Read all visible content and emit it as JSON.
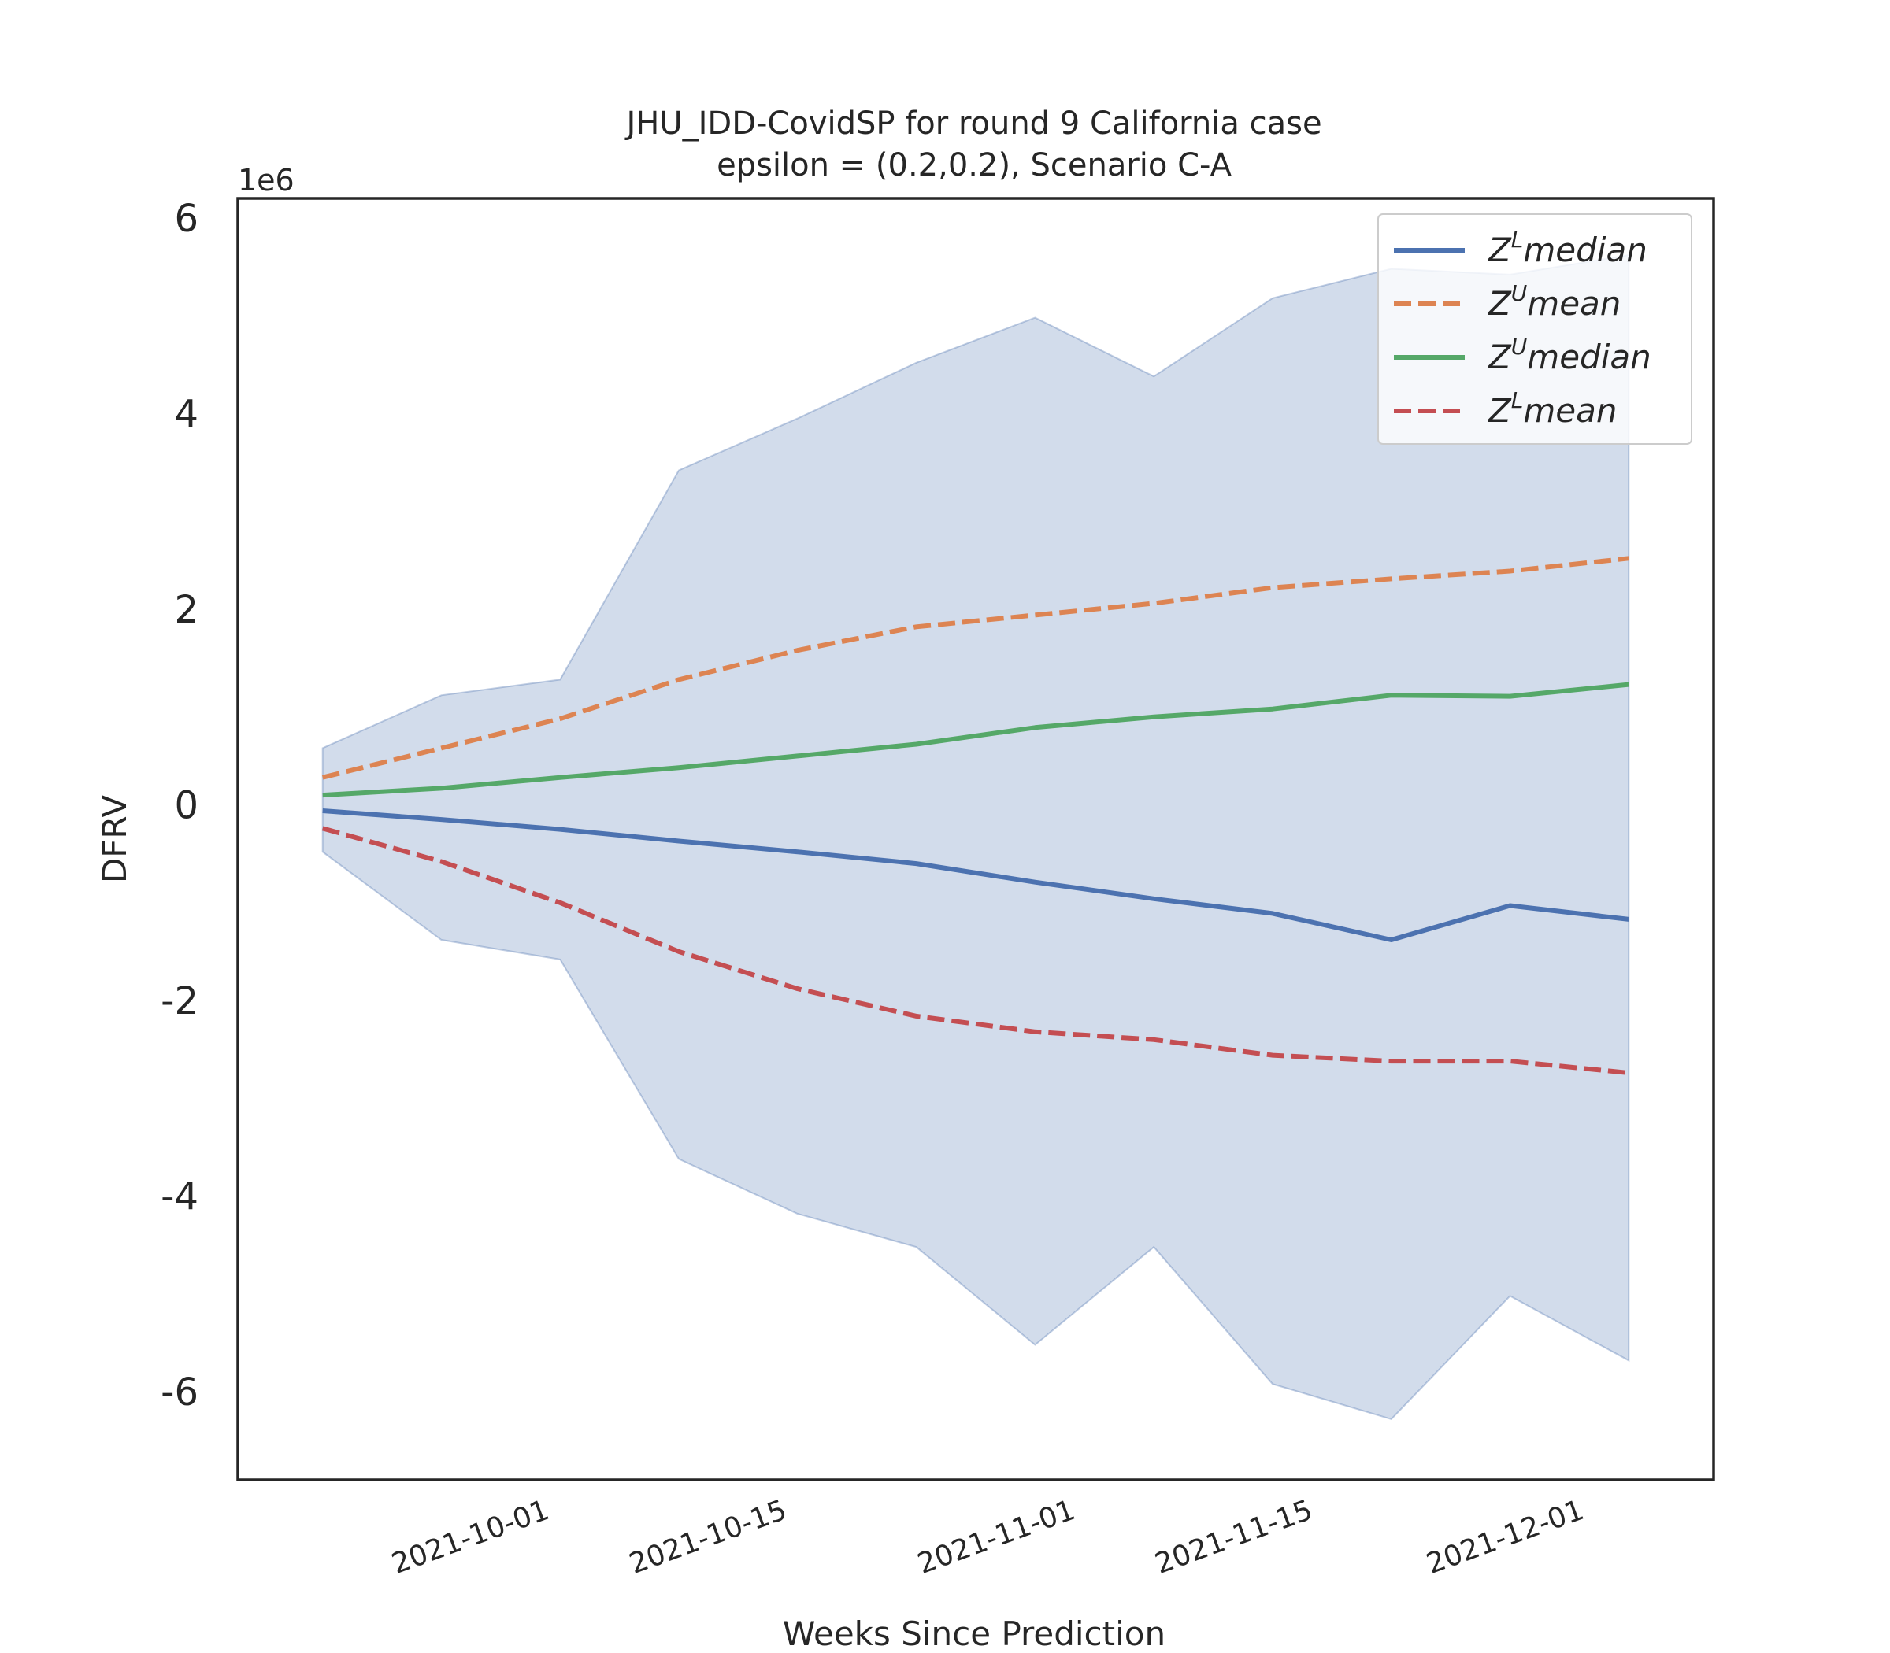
{
  "chart_data": {
    "type": "line",
    "title": "JHU_IDD-CovidSP for round 9 California  case",
    "subtitle": "epsilon = (0.2,0.2), Scenario C-A",
    "xlabel": "Weeks Since Prediction",
    "ylabel": "DFRV",
    "y_offset_label": "1e6",
    "y_scale": 1000000,
    "ylim": [
      -6.9,
      6.2
    ],
    "yticks": [
      -6,
      -4,
      -2,
      0,
      2,
      4,
      6
    ],
    "ytick_labels": [
      "-6",
      "-4",
      "-2",
      "0",
      "2",
      "4",
      "6"
    ],
    "xlim": [
      "2021-09-13",
      "2021-12-09"
    ],
    "xtick_dates": [
      "2021-10-01",
      "2021-10-15",
      "2021-11-01",
      "2021-11-15",
      "2021-12-01"
    ],
    "x": [
      "2021-09-18",
      "2021-09-25",
      "2021-10-02",
      "2021-10-09",
      "2021-10-16",
      "2021-10-23",
      "2021-10-30",
      "2021-11-06",
      "2021-11-13",
      "2021-11-20",
      "2021-11-27",
      "2021-12-04"
    ],
    "band": {
      "upper": [
        0.58,
        1.12,
        1.28,
        3.42,
        3.95,
        4.52,
        4.98,
        4.38,
        5.18,
        5.48,
        5.42,
        5.62
      ],
      "lower": [
        -0.48,
        -1.38,
        -1.58,
        -3.62,
        -4.18,
        -4.52,
        -5.52,
        -4.52,
        -5.92,
        -6.28,
        -5.02,
        -5.68
      ],
      "color": "#4c72b0",
      "opacity": 0.25
    },
    "series": [
      {
        "name": "Z^L median",
        "name_base": "Z",
        "name_sup": "L",
        "name_rest": "median",
        "color": "#4c72b0",
        "dashed": false,
        "values": [
          -0.06,
          -0.15,
          -0.25,
          -0.37,
          -0.48,
          -0.6,
          -0.79,
          -0.96,
          -1.11,
          -1.38,
          -1.03,
          -1.17
        ]
      },
      {
        "name": "Z^U mean",
        "name_base": "Z",
        "name_sup": "U",
        "name_rest": "mean",
        "color": "#dd8452",
        "dashed": true,
        "values": [
          0.28,
          0.58,
          0.88,
          1.28,
          1.58,
          1.82,
          1.94,
          2.06,
          2.22,
          2.31,
          2.39,
          2.52
        ]
      },
      {
        "name": "Z^U median",
        "name_base": "Z",
        "name_sup": "U",
        "name_rest": "median",
        "color": "#55a868",
        "dashed": false,
        "values": [
          0.1,
          0.17,
          0.28,
          0.38,
          0.5,
          0.62,
          0.79,
          0.9,
          0.98,
          1.12,
          1.11,
          1.23
        ]
      },
      {
        "name": "Z^L mean",
        "name_base": "Z",
        "name_sup": "L",
        "name_rest": "mean",
        "color": "#c44e52",
        "dashed": true,
        "values": [
          -0.24,
          -0.58,
          -1.0,
          -1.5,
          -1.88,
          -2.16,
          -2.32,
          -2.4,
          -2.56,
          -2.62,
          -2.62,
          -2.74
        ]
      }
    ],
    "legend": {
      "loc": "upper right"
    },
    "grid": false
  }
}
